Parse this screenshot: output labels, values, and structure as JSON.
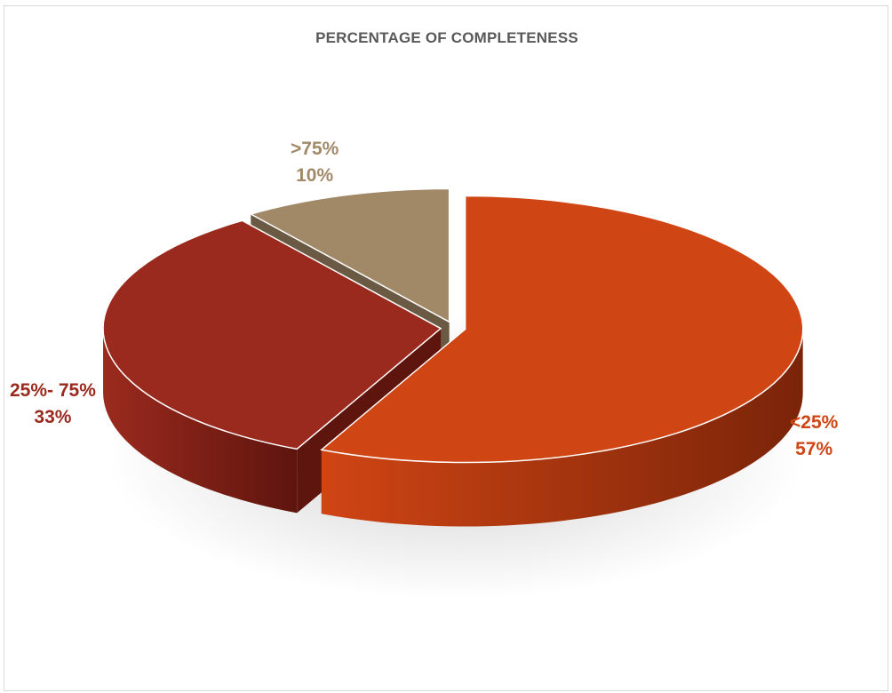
{
  "chart_data": {
    "type": "pie",
    "title": "PERCENTAGE OF COMPLETENESS",
    "slices": [
      {
        "category": "<25%",
        "value": 57,
        "value_label": "57%",
        "color": "#D04514",
        "side_color": "#7A2409",
        "label_position": "right"
      },
      {
        "category": "25%- 75%",
        "value": 33,
        "value_label": "33%",
        "color": "#9B2A1E",
        "side_color": "#5E150E",
        "label_position": "left"
      },
      {
        "category": ">75%",
        "value": 10,
        "value_label": "10%",
        "color": "#A18968",
        "side_color": "#6B5A43",
        "label_position": "top"
      }
    ],
    "style": "3d-exploded"
  }
}
